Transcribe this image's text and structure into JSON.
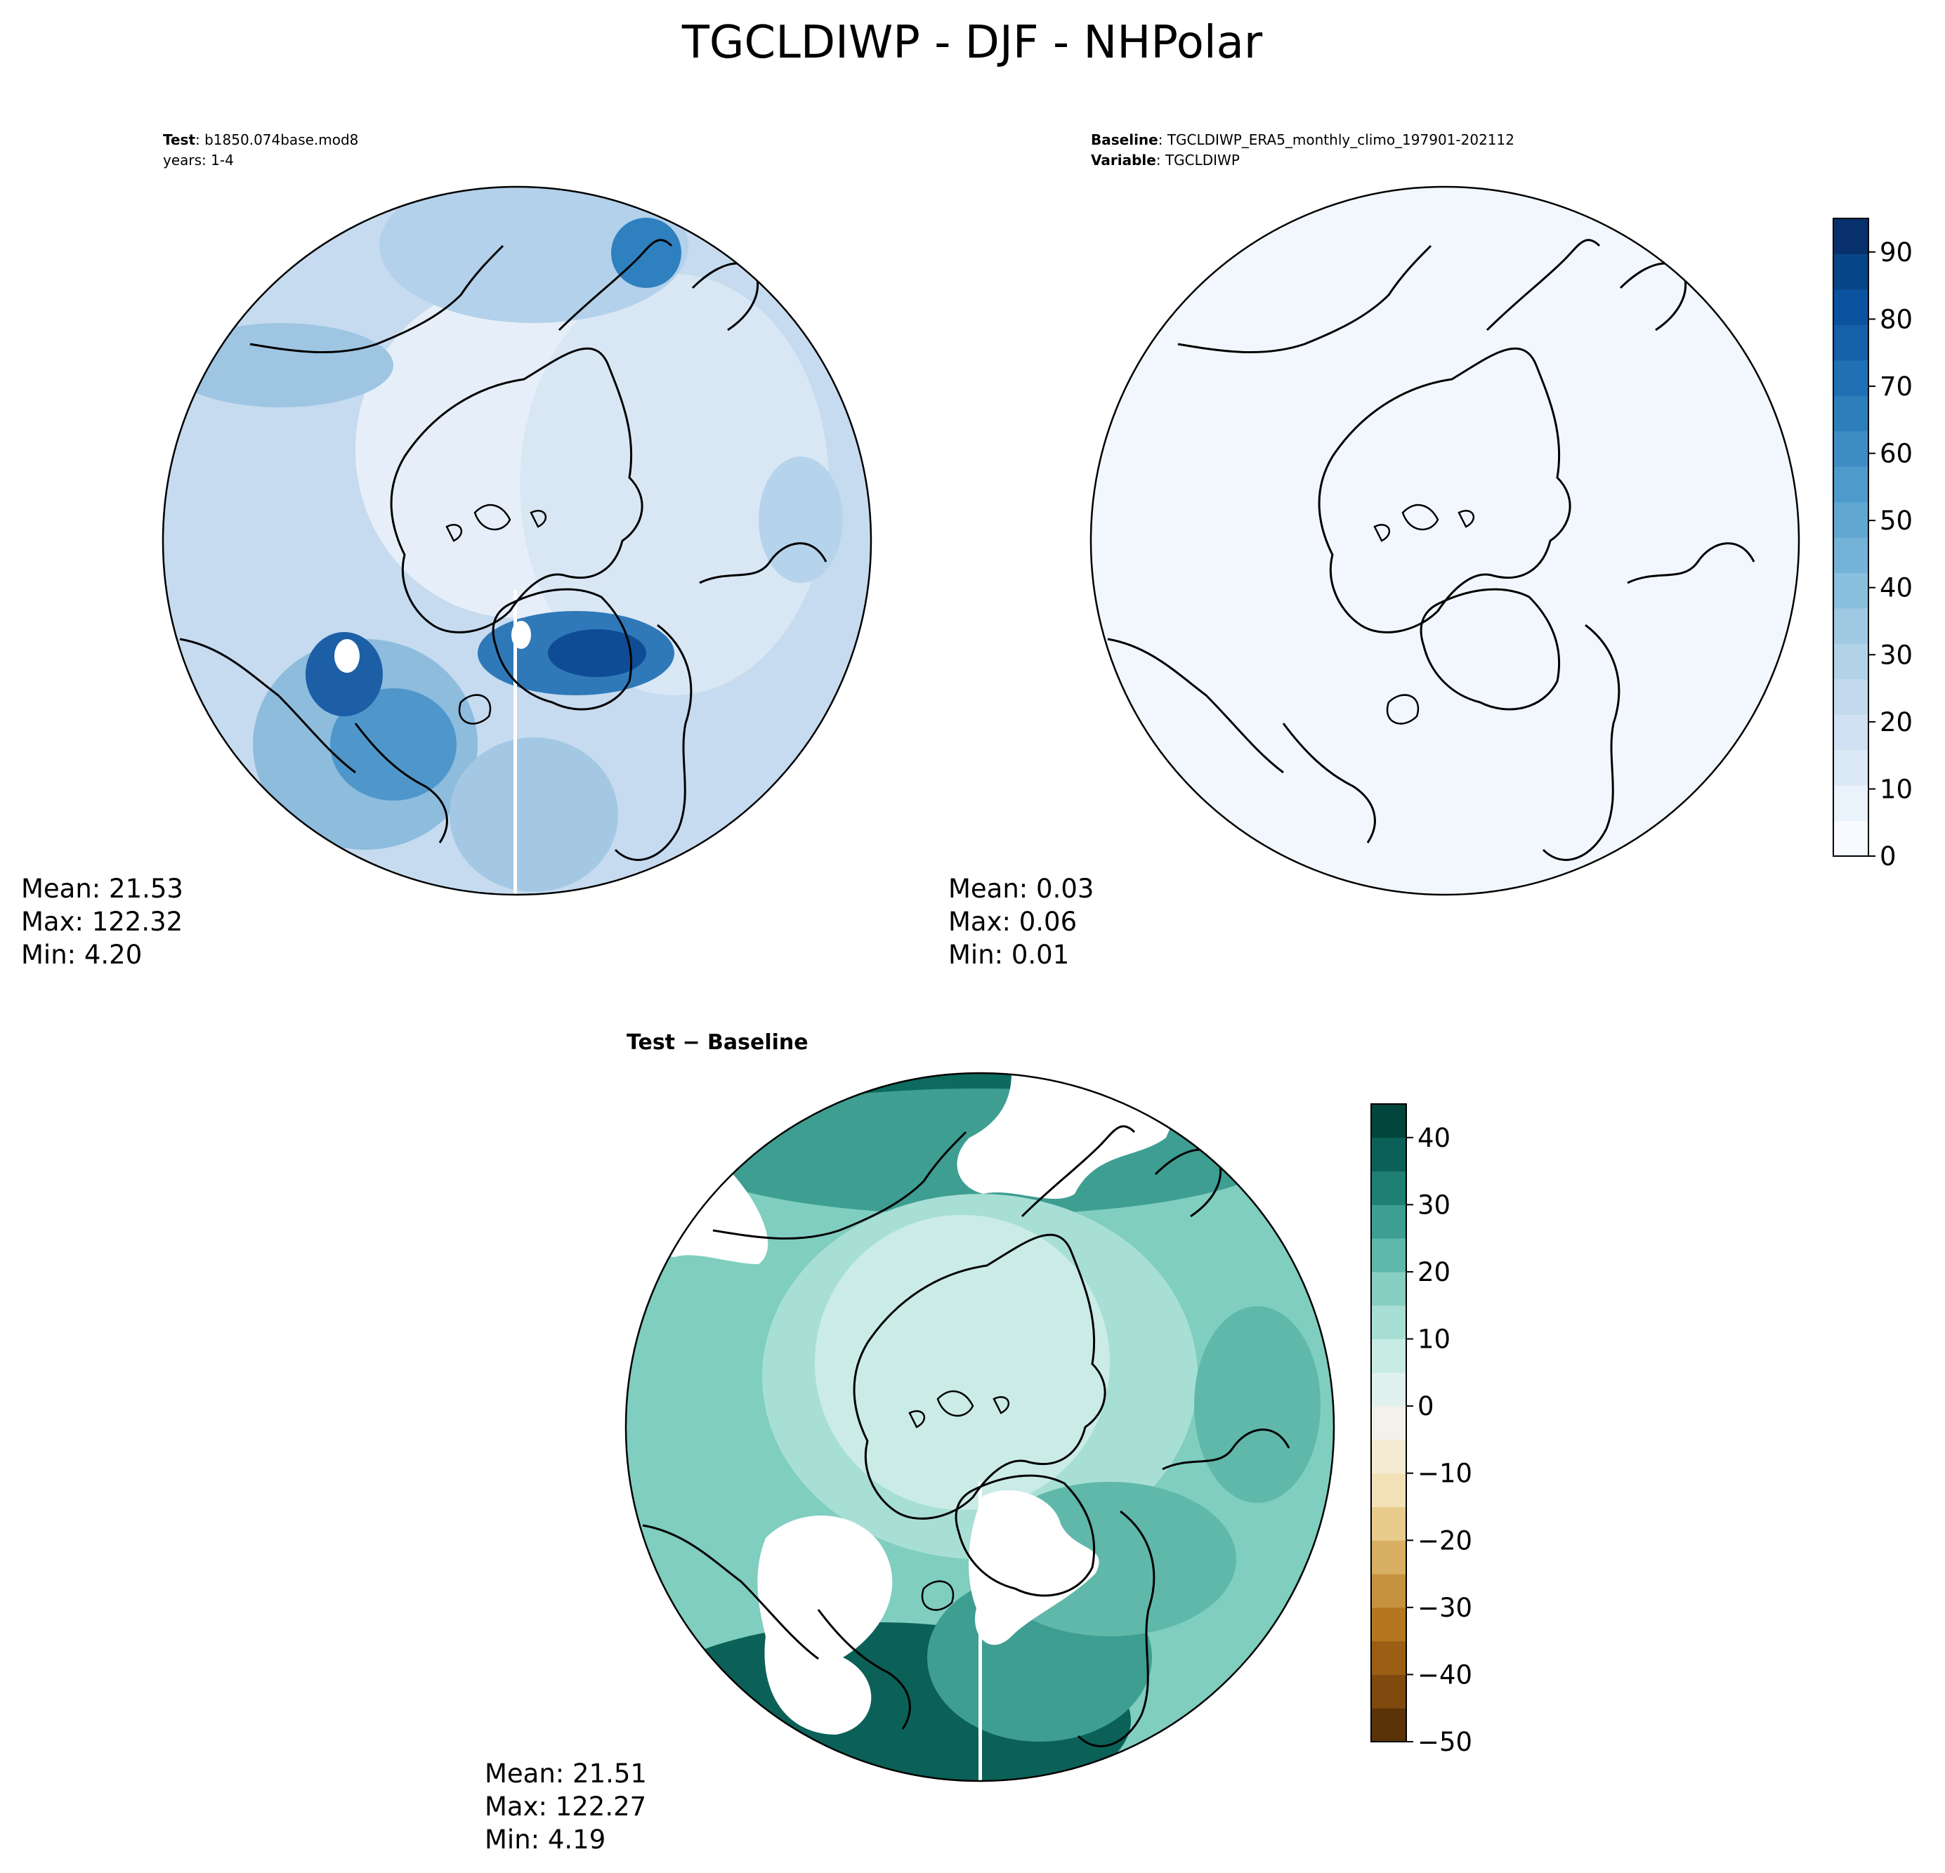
{
  "figure": {
    "title": "TGCLDIWP - DJF - NHPolar"
  },
  "panels": {
    "test": {
      "label_key_1": "Test",
      "label_val_1": ": b1850.074base.mod8",
      "label_line_2": "years: 1-4",
      "stats": {
        "mean": "Mean: 21.53",
        "max": "Max: 122.32",
        "min": "Min:  4.20"
      }
    },
    "baseline": {
      "label_key_1": "Baseline",
      "label_val_1": ": TGCLDIWP_ERA5_monthly_climo_197901-202112",
      "label_key_2": "Variable",
      "label_val_2": ": TGCLDIWP",
      "stats": {
        "mean": "Mean:  0.03",
        "max": "Max:  0.06",
        "min": "Min:  0.01"
      }
    },
    "diff": {
      "label": "Test − Baseline",
      "stats": {
        "mean": "Mean: 21.51",
        "max": "Max: 122.27",
        "min": "Min:  4.19"
      }
    }
  },
  "colorbar_top": {
    "colormap": "Blues",
    "range": [
      0,
      95
    ],
    "ticks": [
      "0",
      "10",
      "20",
      "30",
      "40",
      "50",
      "60",
      "70",
      "80",
      "90"
    ],
    "levels": [
      "#f7fbff",
      "#eaf2fb",
      "#dce9f6",
      "#cfe1f2",
      "#c2d9ee",
      "#b2d2e8",
      "#9fc8e2",
      "#8abfdd",
      "#74b3d8",
      "#60a7d2",
      "#4e9acb",
      "#3d8dc4",
      "#2d7fbc",
      "#1f70b4",
      "#1561a9",
      "#0b539e",
      "#084488",
      "#08306b"
    ]
  },
  "colorbar_diff": {
    "colormap": "BrBG",
    "range": [
      -50,
      45
    ],
    "ticks": [
      "−50",
      "−40",
      "−30",
      "−20",
      "−10",
      "0",
      "10",
      "20",
      "30",
      "40"
    ],
    "levels": [
      "#5b3308",
      "#7e4a0d",
      "#9b5e14",
      "#b4761f",
      "#c69240",
      "#d9b063",
      "#e8cb8d",
      "#f3e1b8",
      "#f6ebd3",
      "#f4f1ea",
      "#e0f1ee",
      "#c8ebe4",
      "#a8dfd4",
      "#86cfc2",
      "#5fb8aa",
      "#3e9e92",
      "#1f7f74",
      "#0b6157",
      "#00463c"
    ]
  },
  "map_colors": {
    "test_ocean": "#cde0f1",
    "test_land": "#e6eff9",
    "baseline_fill": "#f2f7fd",
    "diff_ocean": "#7fcebf",
    "diff_land": "#cbece6",
    "diff_dark": "#0d6a5e",
    "coast": "#000000"
  }
}
